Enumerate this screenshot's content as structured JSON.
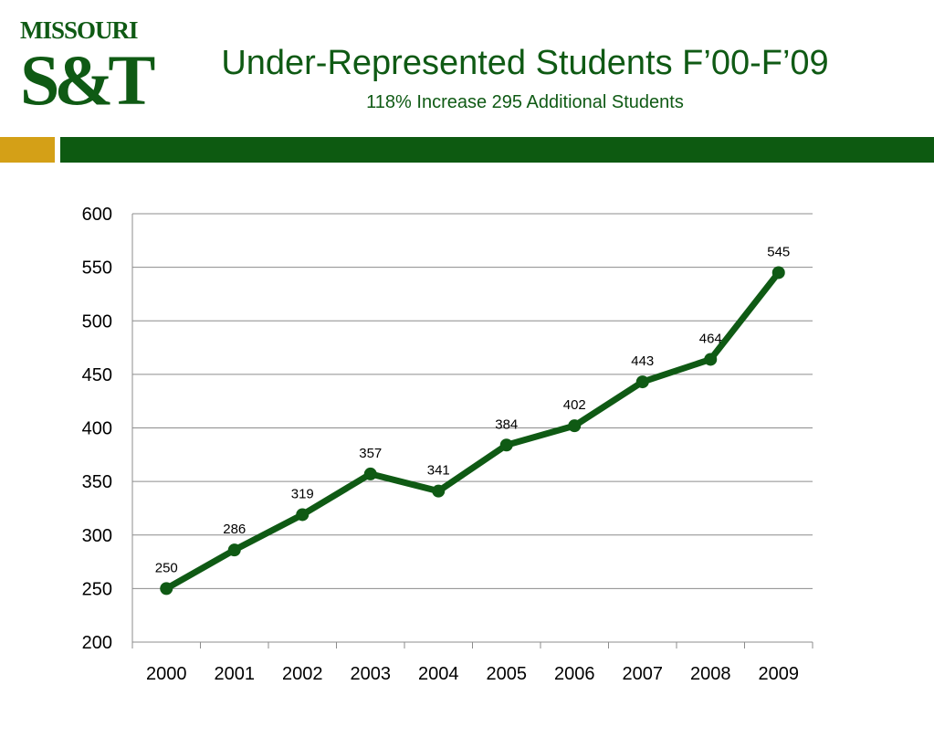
{
  "header": {
    "logo_top": "MISSOURI",
    "logo_main": "S&T",
    "title": "Under-Represented Students F’00-F’09",
    "subtitle": "118% Increase  295 Additional Students"
  },
  "colors": {
    "brand_green": "#0d5a11",
    "brand_gold": "#d4a017",
    "line": "#0f5a14"
  },
  "chart_data": {
    "type": "line",
    "categories": [
      "2000",
      "2001",
      "2002",
      "2003",
      "2004",
      "2005",
      "2006",
      "2007",
      "2008",
      "2009"
    ],
    "series": [
      {
        "values": [
          250,
          286,
          319,
          357,
          341,
          384,
          402,
          443,
          464,
          545
        ]
      }
    ],
    "data_labels": [
      "250",
      "286",
      "319",
      "357",
      "341",
      "384",
      "402",
      "443",
      "464",
      "545"
    ],
    "ylim": [
      200,
      600
    ],
    "yticks": [
      200,
      250,
      300,
      350,
      400,
      450,
      500,
      550,
      600
    ],
    "grid": true,
    "legend": "none"
  }
}
